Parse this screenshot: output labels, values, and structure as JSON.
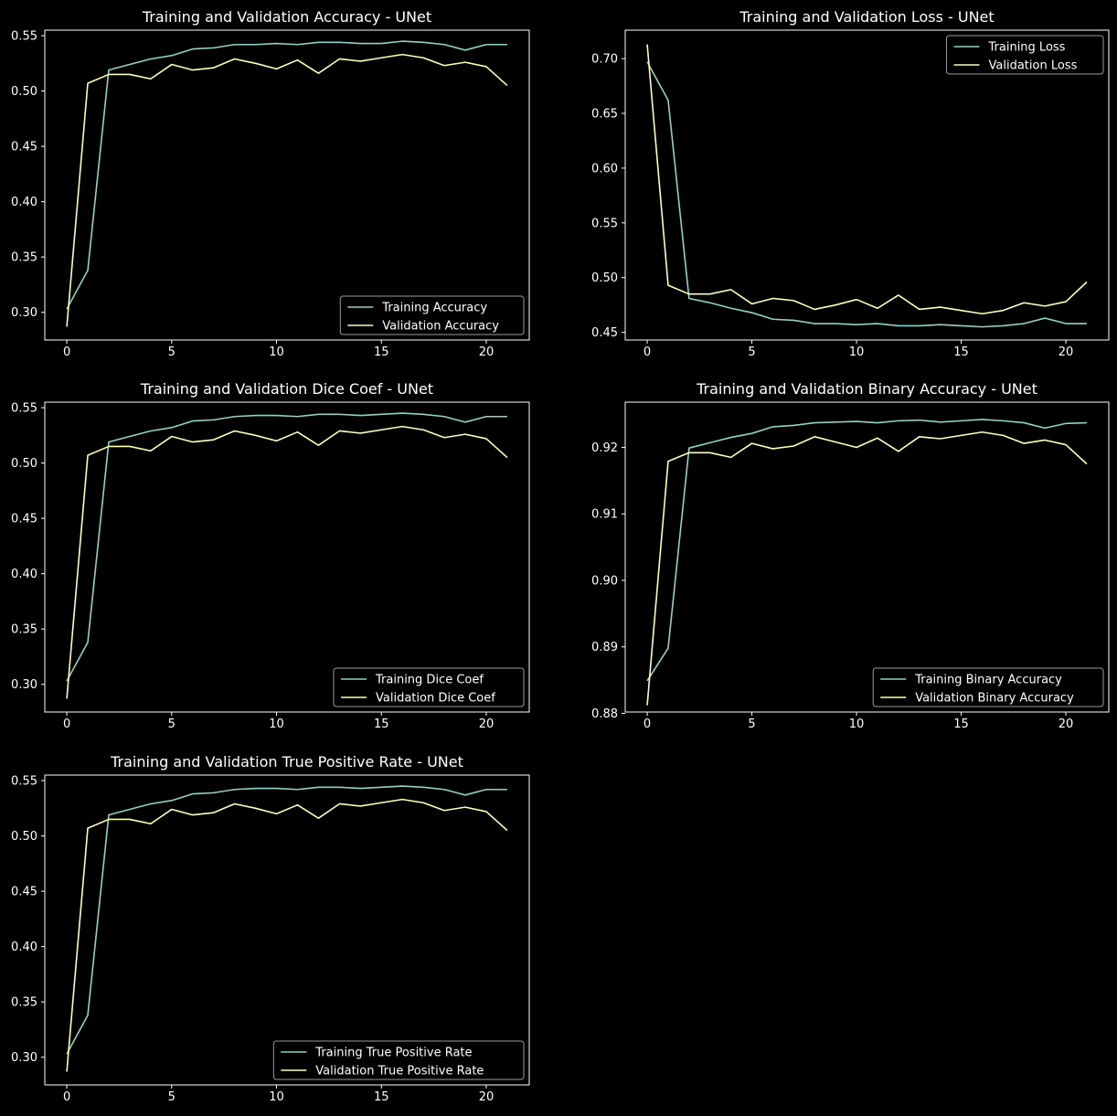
{
  "colors": {
    "background": "#000000",
    "axes": "#ffffff",
    "text": "#ffffff",
    "training": "#8dd3c7",
    "validation": "#ffffb3"
  },
  "chart_data": [
    {
      "type": "line",
      "title": "Training and Validation Accuracy - UNet",
      "xlabel": "",
      "ylabel": "",
      "xlim": [
        -1.05,
        22.05
      ],
      "ylim": [
        0.275,
        0.555
      ],
      "xticks": [
        0,
        5,
        10,
        15,
        20
      ],
      "yticks": [
        0.3,
        0.35,
        0.4,
        0.45,
        0.5,
        0.55
      ],
      "legend": "lower-right",
      "grid": false,
      "x": [
        0,
        1,
        2,
        3,
        4,
        5,
        6,
        7,
        8,
        9,
        10,
        11,
        12,
        13,
        14,
        15,
        16,
        17,
        18,
        19,
        20,
        21
      ],
      "series": [
        {
          "name": "Training Accuracy",
          "color": "training",
          "values": [
            0.303,
            0.338,
            0.519,
            0.524,
            0.529,
            0.532,
            0.538,
            0.539,
            0.542,
            0.542,
            0.543,
            0.542,
            0.544,
            0.544,
            0.543,
            0.543,
            0.545,
            0.544,
            0.542,
            0.537,
            0.542,
            0.542
          ]
        },
        {
          "name": "Validation Accuracy",
          "color": "validation",
          "values": [
            0.287,
            0.507,
            0.515,
            0.515,
            0.511,
            0.524,
            0.519,
            0.521,
            0.529,
            0.525,
            0.52,
            0.528,
            0.516,
            0.529,
            0.527,
            0.53,
            0.533,
            0.53,
            0.523,
            0.526,
            0.522,
            0.505
          ]
        }
      ]
    },
    {
      "type": "line",
      "title": "Training and Validation Loss - UNet",
      "xlabel": "",
      "ylabel": "",
      "xlim": [
        -1.05,
        22.05
      ],
      "ylim": [
        0.443,
        0.726
      ],
      "xticks": [
        0,
        5,
        10,
        15,
        20
      ],
      "yticks": [
        0.45,
        0.5,
        0.55,
        0.6,
        0.65,
        0.7
      ],
      "legend": "upper-right",
      "grid": false,
      "x": [
        0,
        1,
        2,
        3,
        4,
        5,
        6,
        7,
        8,
        9,
        10,
        11,
        12,
        13,
        14,
        15,
        16,
        17,
        18,
        19,
        20,
        21
      ],
      "series": [
        {
          "name": "Training Loss",
          "color": "training",
          "values": [
            0.697,
            0.662,
            0.481,
            0.477,
            0.472,
            0.468,
            0.462,
            0.461,
            0.458,
            0.458,
            0.457,
            0.458,
            0.456,
            0.456,
            0.457,
            0.456,
            0.455,
            0.456,
            0.458,
            0.463,
            0.458,
            0.458
          ]
        },
        {
          "name": "Validation Loss",
          "color": "validation",
          "values": [
            0.713,
            0.493,
            0.485,
            0.485,
            0.489,
            0.476,
            0.481,
            0.479,
            0.471,
            0.475,
            0.48,
            0.472,
            0.484,
            0.471,
            0.473,
            0.47,
            0.467,
            0.47,
            0.477,
            0.474,
            0.478,
            0.496
          ]
        }
      ]
    },
    {
      "type": "line",
      "title": "Training and Validation Dice Coef - UNet",
      "xlabel": "",
      "ylabel": "",
      "xlim": [
        -1.05,
        22.05
      ],
      "ylim": [
        0.275,
        0.555
      ],
      "xticks": [
        0,
        5,
        10,
        15,
        20
      ],
      "yticks": [
        0.3,
        0.35,
        0.4,
        0.45,
        0.5,
        0.55
      ],
      "legend": "lower-right",
      "grid": false,
      "x": [
        0,
        1,
        2,
        3,
        4,
        5,
        6,
        7,
        8,
        9,
        10,
        11,
        12,
        13,
        14,
        15,
        16,
        17,
        18,
        19,
        20,
        21
      ],
      "series": [
        {
          "name": "Training Dice Coef",
          "color": "training",
          "values": [
            0.303,
            0.338,
            0.519,
            0.524,
            0.529,
            0.532,
            0.538,
            0.539,
            0.542,
            0.543,
            0.543,
            0.542,
            0.544,
            0.544,
            0.543,
            0.544,
            0.545,
            0.544,
            0.542,
            0.537,
            0.542,
            0.542
          ]
        },
        {
          "name": "Validation Dice Coef",
          "color": "validation",
          "values": [
            0.287,
            0.507,
            0.515,
            0.515,
            0.511,
            0.524,
            0.519,
            0.521,
            0.529,
            0.525,
            0.52,
            0.528,
            0.516,
            0.529,
            0.527,
            0.53,
            0.533,
            0.53,
            0.523,
            0.526,
            0.522,
            0.505
          ]
        }
      ]
    },
    {
      "type": "line",
      "title": "Training and Validation Binary Accuracy - UNet",
      "xlabel": "",
      "ylabel": "",
      "xlim": [
        -1.05,
        22.05
      ],
      "ylim": [
        0.8802,
        0.9268
      ],
      "xticks": [
        0,
        5,
        10,
        15,
        20
      ],
      "yticks": [
        0.88,
        0.89,
        0.9,
        0.91,
        0.92
      ],
      "legend": "lower-right",
      "grid": false,
      "x": [
        0,
        1,
        2,
        3,
        4,
        5,
        6,
        7,
        8,
        9,
        10,
        11,
        12,
        13,
        14,
        15,
        16,
        17,
        18,
        19,
        20,
        21
      ],
      "series": [
        {
          "name": "Training Binary Accuracy",
          "color": "training",
          "values": [
            0.8849,
            0.8898,
            0.9199,
            0.9207,
            0.9215,
            0.9221,
            0.9231,
            0.9233,
            0.9237,
            0.9238,
            0.9239,
            0.9237,
            0.924,
            0.9241,
            0.9238,
            0.924,
            0.9242,
            0.924,
            0.9237,
            0.9229,
            0.9236,
            0.9237
          ]
        },
        {
          "name": "Validation Binary Accuracy",
          "color": "validation",
          "values": [
            0.8812,
            0.9179,
            0.9192,
            0.9192,
            0.9185,
            0.9206,
            0.9198,
            0.9202,
            0.9216,
            0.9208,
            0.92,
            0.9214,
            0.9194,
            0.9216,
            0.9213,
            0.9218,
            0.9223,
            0.9218,
            0.9206,
            0.9211,
            0.9204,
            0.9175
          ]
        }
      ]
    },
    {
      "type": "line",
      "title": "Training and Validation True Positive Rate - UNet",
      "xlabel": "",
      "ylabel": "",
      "xlim": [
        -1.05,
        22.05
      ],
      "ylim": [
        0.275,
        0.555
      ],
      "xticks": [
        0,
        5,
        10,
        15,
        20
      ],
      "yticks": [
        0.3,
        0.35,
        0.4,
        0.45,
        0.5,
        0.55
      ],
      "legend": "lower-right",
      "grid": false,
      "x": [
        0,
        1,
        2,
        3,
        4,
        5,
        6,
        7,
        8,
        9,
        10,
        11,
        12,
        13,
        14,
        15,
        16,
        17,
        18,
        19,
        20,
        21
      ],
      "series": [
        {
          "name": "Training True Positive Rate",
          "color": "training",
          "values": [
            0.303,
            0.338,
            0.519,
            0.524,
            0.529,
            0.532,
            0.538,
            0.539,
            0.542,
            0.543,
            0.543,
            0.542,
            0.544,
            0.544,
            0.543,
            0.544,
            0.545,
            0.544,
            0.542,
            0.537,
            0.542,
            0.542
          ]
        },
        {
          "name": "Validation True Positive Rate",
          "color": "validation",
          "values": [
            0.287,
            0.507,
            0.515,
            0.515,
            0.511,
            0.524,
            0.519,
            0.521,
            0.529,
            0.525,
            0.52,
            0.528,
            0.516,
            0.529,
            0.527,
            0.53,
            0.533,
            0.53,
            0.523,
            0.526,
            0.522,
            0.505
          ]
        }
      ]
    }
  ]
}
